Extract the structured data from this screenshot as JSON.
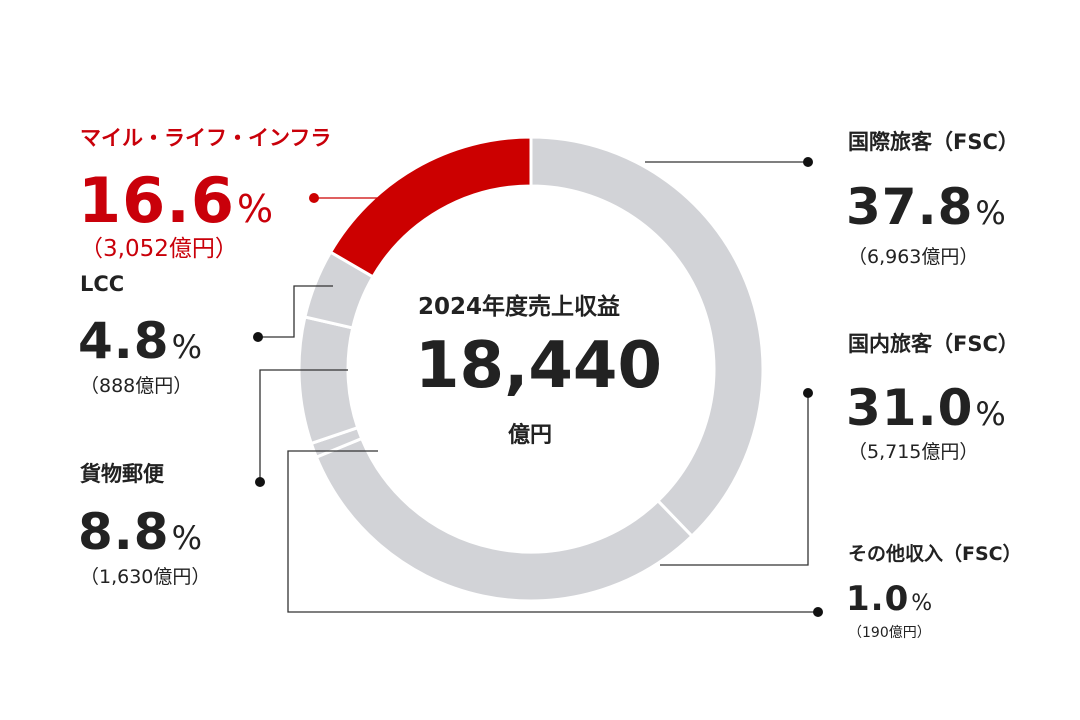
{
  "chart_data": {
    "type": "pie",
    "title": "2024年度売上収益",
    "total": "18,440",
    "total_unit": "億円",
    "percent_unit": "%",
    "colors": {
      "highlight": "#cc0000",
      "base": "#d2d3d7",
      "separator": "#ffffff",
      "line": "#333333"
    },
    "slices": [
      {
        "name": "国際旅客（FSC）",
        "percent": 37.8,
        "pct_label": "37.8",
        "amount": "（6,963億円）",
        "highlight": false
      },
      {
        "name": "国内旅客（FSC）",
        "percent": 31.0,
        "pct_label": "31.0",
        "amount": "（5,715億円）",
        "highlight": false
      },
      {
        "name": "その他収入（FSC）",
        "percent": 1.0,
        "pct_label": "1.0",
        "amount": "（190億円）",
        "highlight": false
      },
      {
        "name": "貨物郵便",
        "percent": 8.8,
        "pct_label": "8.8",
        "amount": "（1,630億円）",
        "highlight": false
      },
      {
        "name": "LCC",
        "percent": 4.8,
        "pct_label": "4.8",
        "amount": "（888億円）",
        "highlight": false
      },
      {
        "name": "マイル・ライフ・インフラ",
        "percent": 16.6,
        "pct_label": "16.6",
        "amount": "（3,052億円）",
        "highlight": true
      }
    ]
  }
}
